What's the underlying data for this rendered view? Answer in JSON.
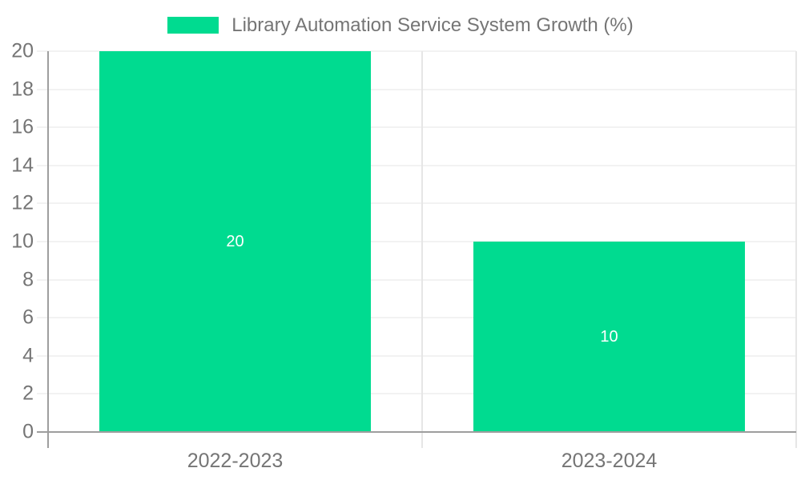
{
  "legend": {
    "label": "Library Automation Service System Growth (%)"
  },
  "chart_data": {
    "type": "bar",
    "title": "",
    "categories": [
      "2022-2023",
      "2023-2024"
    ],
    "series": [
      {
        "name": "Library Automation Service System Growth (%)",
        "values": [
          20,
          10
        ]
      }
    ],
    "data_labels": [
      "20",
      "10"
    ],
    "xlabel": "",
    "ylabel": "",
    "ylim": [
      0,
      20
    ],
    "yticks": [
      0,
      2,
      4,
      6,
      8,
      10,
      12,
      14,
      16,
      18,
      20
    ],
    "grid": true,
    "legend_position": "top-center",
    "colors": {
      "bar": "#00DB90",
      "bar_label": "#FFFFFF",
      "axis_text": "#757575",
      "gridline": "#E6E6E6",
      "axis_line": "#9E9E9E",
      "background": "#FFFFFF"
    }
  }
}
